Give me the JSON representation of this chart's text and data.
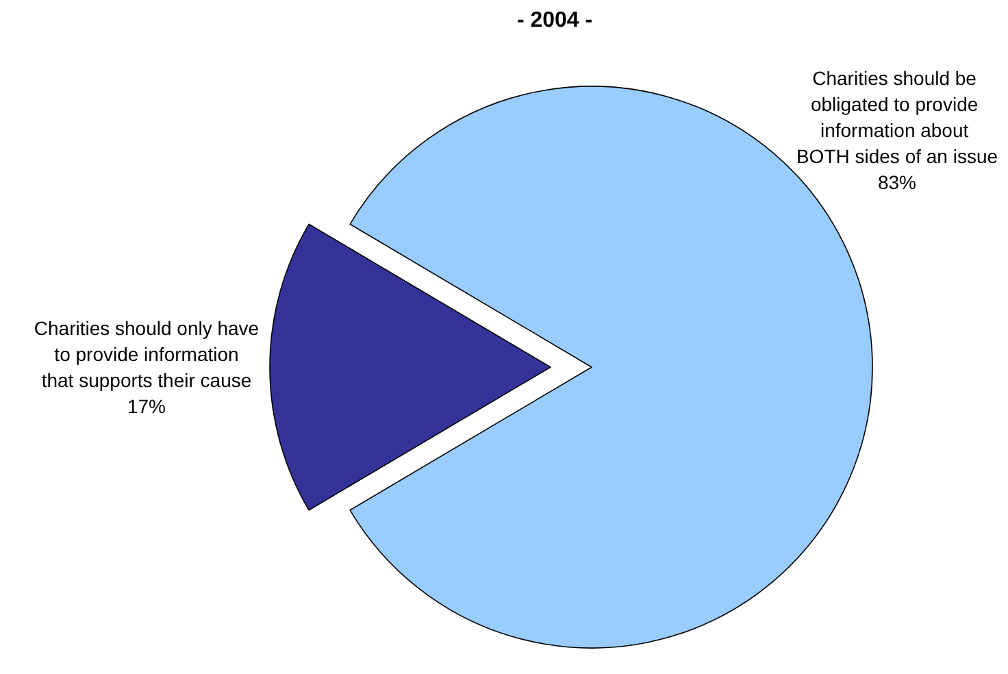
{
  "chart_data": {
    "type": "pie",
    "title": "- 2004 -",
    "categories": [
      "Charities should be obligated to provide information about BOTH sides of an issue",
      "Charities should only have to provide information that supports their cause"
    ],
    "values": [
      83,
      17
    ],
    "colors": [
      "#99ccff",
      "#333399"
    ],
    "value_labels": [
      "83%",
      "17%"
    ],
    "legend": false
  }
}
